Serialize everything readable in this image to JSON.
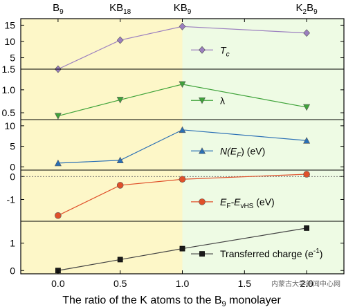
{
  "chart_data": {
    "type": "line",
    "xlabel_parts": {
      "pre": "The ratio of the K atoms to the B",
      "sub": "9",
      "post": " monolayer"
    },
    "xlim": [
      -0.3,
      2.3
    ],
    "x_ticks": [
      0.0,
      0.5,
      1.0,
      1.5,
      2.0
    ],
    "x_tick_labels": [
      "0.0",
      "0.5",
      "1.0",
      "1.5",
      "2.0"
    ],
    "top_labels": [
      {
        "x": 0.0,
        "base": "B",
        "sub": "9"
      },
      {
        "x": 0.5,
        "base": "KB",
        "sub": "18"
      },
      {
        "x": 1.0,
        "base": "KB",
        "sub": "9"
      },
      {
        "x": 2.0,
        "base": "K",
        "sub": "2",
        "rest": "B",
        "sub2": "9"
      }
    ],
    "background_split_x": 1.0,
    "colors": {
      "left_bg": "#fdf7c8",
      "right_bg": "#eefbe4"
    },
    "x": [
      0.0,
      0.5,
      1.0,
      2.0
    ],
    "panels": [
      {
        "ylim": [
          1.5,
          17
        ],
        "ticks": [
          5,
          10,
          15
        ],
        "tick_labels": [
          "5",
          "10",
          "15"
        ],
        "bottom_label": "1.5",
        "values": [
          1.5,
          10.4,
          14.6,
          12.6
        ],
        "color": "#9b7fbf",
        "marker": "diamond",
        "legend": {
          "pre": "T",
          "sub": "c",
          "post": ""
        }
      },
      {
        "ylim": [
          0.35,
          1.45
        ],
        "ticks": [
          0.5,
          1.0
        ],
        "tick_labels": [
          "0.5",
          "1.0"
        ],
        "bottom_label": "",
        "values": [
          0.43,
          0.78,
          1.12,
          0.62
        ],
        "color": "#3fa33a",
        "marker": "triangle-down",
        "legend": {
          "pre": "λ",
          "sub": "",
          "post": ""
        }
      },
      {
        "ylim": [
          -0.8,
          11.5
        ],
        "ticks": [
          0,
          5,
          10
        ],
        "tick_labels": [
          "0",
          "5",
          "10"
        ],
        "bottom_label": "",
        "values": [
          0.9,
          1.6,
          9.0,
          6.4
        ],
        "color": "#2a6fb5",
        "marker": "triangle-up",
        "legend": {
          "pre": "N(E",
          "sub": "F",
          "post": ") (eV)"
        }
      },
      {
        "ylim": [
          -1.95,
          0.28
        ],
        "ticks": [
          -1,
          0
        ],
        "tick_labels": [
          "-1",
          "0"
        ],
        "bottom_label": "",
        "values": [
          -1.7,
          -0.38,
          -0.12,
          0.1
        ],
        "color": "#e0502a",
        "marker": "circle",
        "zero_line": true,
        "legend": {
          "pre": "E",
          "sub": "F",
          "post": "-E",
          "sub2": "vHS",
          "post2": " (eV)"
        }
      },
      {
        "ylim": [
          -0.12,
          1.8
        ],
        "ticks": [
          0,
          1
        ],
        "tick_labels": [
          "0",
          "1"
        ],
        "bottom_label": "",
        "values": [
          0.0,
          0.4,
          0.8,
          1.55
        ],
        "color": "#1a1a1a",
        "line_color": "#444444",
        "marker": "square",
        "legend": {
          "pre": "Transferred charge (e",
          "sup": "-1",
          "post": ")"
        }
      }
    ]
  },
  "watermark": "内蒙古大学新闻中心网"
}
